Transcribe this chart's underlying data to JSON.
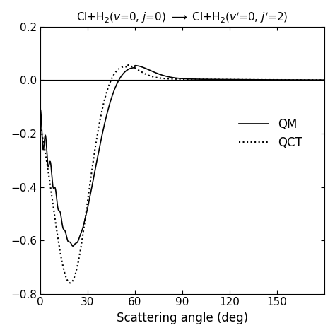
{
  "xlabel": "Scattering angle (deg)",
  "xlim": [
    0,
    180
  ],
  "ylim": [
    -0.8,
    0.2
  ],
  "yticks": [
    -0.8,
    -0.6,
    -0.4,
    -0.2,
    0.0,
    0.2
  ],
  "xticks": [
    0,
    30,
    60,
    90,
    120,
    150
  ],
  "legend_labels": [
    "QM",
    "QCT"
  ],
  "background_color": "#ffffff",
  "line_color": "#000000"
}
